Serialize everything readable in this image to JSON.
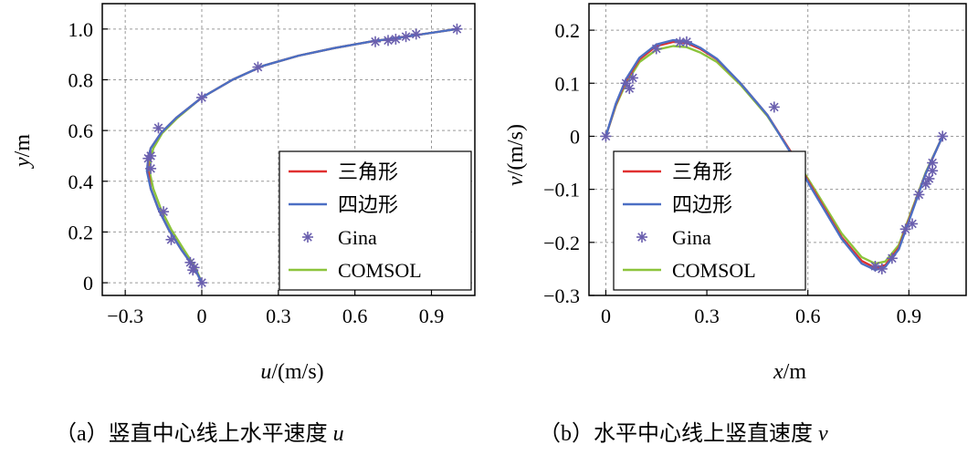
{
  "chart_data": [
    {
      "type": "line",
      "xlabel_var": "u",
      "xlabel_unit": "/(m/s)",
      "ylabel_var": "y",
      "ylabel_unit": "/m",
      "xlim": [
        -0.39,
        1.07
      ],
      "ylim": [
        -0.05,
        1.1
      ],
      "xticks": [
        -0.3,
        0,
        0.3,
        0.6,
        0.9
      ],
      "xtick_labels": [
        "−0.3",
        "0",
        "0.3",
        "0.6",
        "0.9"
      ],
      "yticks": [
        0,
        0.2,
        0.4,
        0.6,
        0.8,
        1.0
      ],
      "ytick_labels": [
        "0",
        "0.2",
        "0.4",
        "0.6",
        "0.8",
        "1.0"
      ],
      "grid": true,
      "legend_position": "lower-right",
      "series": [
        {
          "name": "三角形",
          "style": "line",
          "color": "#e03030",
          "x": [
            0,
            -0.03,
            -0.08,
            -0.13,
            -0.17,
            -0.2,
            -0.21,
            -0.21,
            -0.2,
            -0.16,
            -0.1,
            0.0,
            0.12,
            0.24,
            0.38,
            0.52,
            0.66,
            0.8,
            0.9,
            1.0
          ],
          "y": [
            0,
            0.06,
            0.13,
            0.21,
            0.29,
            0.37,
            0.44,
            0.49,
            0.53,
            0.59,
            0.65,
            0.73,
            0.8,
            0.855,
            0.895,
            0.925,
            0.95,
            0.97,
            0.985,
            1.0
          ]
        },
        {
          "name": "四边形",
          "style": "line",
          "color": "#4b6fc4",
          "x": [
            0,
            -0.03,
            -0.08,
            -0.13,
            -0.17,
            -0.2,
            -0.215,
            -0.21,
            -0.2,
            -0.16,
            -0.1,
            0.0,
            0.12,
            0.24,
            0.38,
            0.52,
            0.66,
            0.8,
            0.9,
            1.0
          ],
          "y": [
            0,
            0.06,
            0.13,
            0.21,
            0.29,
            0.37,
            0.44,
            0.49,
            0.53,
            0.59,
            0.65,
            0.73,
            0.8,
            0.855,
            0.895,
            0.925,
            0.95,
            0.97,
            0.985,
            1.0
          ]
        },
        {
          "name": "Gina",
          "style": "marker",
          "color": "#6a5fae",
          "x": [
            0,
            -0.035,
            -0.045,
            -0.03,
            -0.12,
            -0.15,
            -0.2,
            -0.21,
            -0.2,
            -0.17,
            0.0,
            0.22,
            0.68,
            0.73,
            0.76,
            0.8,
            0.84,
            1.0
          ],
          "y": [
            0,
            0.05,
            0.08,
            0.06,
            0.17,
            0.28,
            0.45,
            0.49,
            0.5,
            0.61,
            0.73,
            0.85,
            0.95,
            0.955,
            0.96,
            0.97,
            0.98,
            1.0
          ]
        },
        {
          "name": "COMSOL",
          "style": "line",
          "color": "#8cc43c",
          "x": [
            0,
            -0.025,
            -0.07,
            -0.12,
            -0.16,
            -0.19,
            -0.205,
            -0.2,
            -0.19,
            -0.155,
            -0.095,
            0.0,
            0.12,
            0.24,
            0.38,
            0.52,
            0.66,
            0.8,
            0.9,
            1.0
          ],
          "y": [
            0,
            0.06,
            0.13,
            0.21,
            0.29,
            0.37,
            0.44,
            0.49,
            0.53,
            0.59,
            0.65,
            0.73,
            0.8,
            0.855,
            0.895,
            0.925,
            0.95,
            0.97,
            0.985,
            1.0
          ]
        }
      ]
    },
    {
      "type": "line",
      "xlabel_var": "x",
      "xlabel_unit": "/m",
      "ylabel_var": "v",
      "ylabel_unit": "/(m/s)",
      "xlim": [
        -0.05,
        1.07
      ],
      "ylim": [
        -0.3,
        0.25
      ],
      "xticks": [
        0,
        0.3,
        0.6,
        0.9
      ],
      "xtick_labels": [
        "0",
        "0.3",
        "0.6",
        "0.9"
      ],
      "yticks": [
        -0.3,
        -0.2,
        -0.1,
        0,
        0.1,
        0.2
      ],
      "ytick_labels": [
        "−0.3",
        "−0.2",
        "−0.1",
        "0",
        "0.1",
        "0.2"
      ],
      "grid": true,
      "legend_position": "lower-left",
      "series": [
        {
          "name": "三角形",
          "style": "line",
          "color": "#e03030",
          "x": [
            0,
            0.03,
            0.06,
            0.1,
            0.15,
            0.2,
            0.24,
            0.28,
            0.33,
            0.4,
            0.48,
            0.55,
            0.62,
            0.7,
            0.76,
            0.8,
            0.83,
            0.87,
            0.91,
            0.95,
            1.0
          ],
          "y": [
            0,
            0.06,
            0.105,
            0.145,
            0.17,
            0.178,
            0.176,
            0.165,
            0.145,
            0.1,
            0.04,
            -0.03,
            -0.105,
            -0.19,
            -0.235,
            -0.248,
            -0.243,
            -0.21,
            -0.14,
            -0.07,
            0.0
          ]
        },
        {
          "name": "四边形",
          "style": "line",
          "color": "#4b6fc4",
          "x": [
            0,
            0.03,
            0.06,
            0.1,
            0.15,
            0.2,
            0.24,
            0.28,
            0.33,
            0.4,
            0.48,
            0.55,
            0.62,
            0.7,
            0.76,
            0.8,
            0.83,
            0.87,
            0.91,
            0.95,
            1.0
          ],
          "y": [
            0,
            0.062,
            0.108,
            0.148,
            0.173,
            0.181,
            0.179,
            0.167,
            0.146,
            0.1,
            0.04,
            -0.032,
            -0.108,
            -0.193,
            -0.24,
            -0.252,
            -0.246,
            -0.213,
            -0.142,
            -0.07,
            0.0
          ]
        },
        {
          "name": "Gina",
          "style": "marker",
          "color": "#6a5fae",
          "x": [
            0,
            0.06,
            0.07,
            0.08,
            0.15,
            0.22,
            0.24,
            0.5,
            0.8,
            0.82,
            0.85,
            0.89,
            0.91,
            0.93,
            0.95,
            0.96,
            0.97,
            0.97,
            1.0
          ],
          "y": [
            0,
            0.1,
            0.09,
            0.11,
            0.165,
            0.177,
            0.178,
            0.055,
            -0.245,
            -0.25,
            -0.23,
            -0.175,
            -0.165,
            -0.11,
            -0.09,
            -0.08,
            -0.065,
            -0.05,
            0.0
          ]
        },
        {
          "name": "COMSOL",
          "style": "line",
          "color": "#8cc43c",
          "x": [
            0,
            0.03,
            0.06,
            0.1,
            0.15,
            0.2,
            0.24,
            0.28,
            0.33,
            0.4,
            0.48,
            0.55,
            0.62,
            0.7,
            0.76,
            0.8,
            0.83,
            0.87,
            0.91,
            0.95,
            1.0
          ],
          "y": [
            0,
            0.058,
            0.1,
            0.14,
            0.163,
            0.17,
            0.168,
            0.158,
            0.14,
            0.097,
            0.038,
            -0.03,
            -0.1,
            -0.183,
            -0.228,
            -0.24,
            -0.236,
            -0.205,
            -0.137,
            -0.068,
            0.0
          ]
        }
      ]
    }
  ],
  "captions": {
    "a_text": "（a）竖直中心线上水平速度 ",
    "a_var": "u",
    "b_text": "（b）水平中心线上竖直速度 ",
    "b_var": "v"
  }
}
